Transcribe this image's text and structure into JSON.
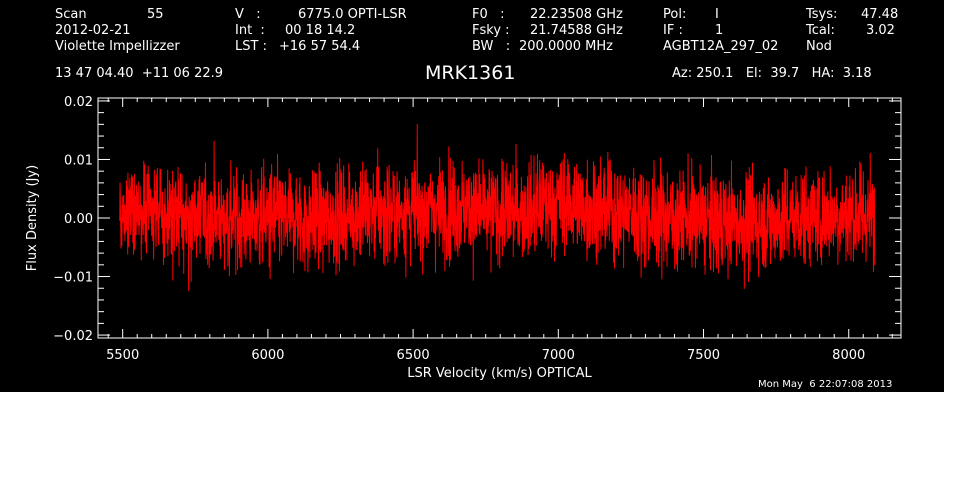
{
  "header": {
    "row1": {
      "scan_label": "Scan",
      "scan_value": "55",
      "v_label": "V   :",
      "v_value": "6775.0 OPTI-LSR",
      "f0_label": "F0   :",
      "f0_value": "22.23508 GHz",
      "pol_label": "Pol:",
      "pol_value": "I",
      "tsys_label": "Tsys:",
      "tsys_value": "47.48"
    },
    "row2": {
      "date": "2012-02-21",
      "int_label": "Int  :",
      "int_value": "00 18 14.2",
      "fsky_label": "Fsky :",
      "fsky_value": "21.74588 GHz",
      "if_label": "IF :",
      "if_value": "1",
      "tcal_label": "Tcal:",
      "tcal_value": "3.02"
    },
    "row3": {
      "observer": "Violette Impellizzer",
      "lst_label": "LST : ",
      "lst_value": "+16 57 54.4",
      "bw_label": "BW   :",
      "bw_value": "200.0000 MHz",
      "project": "AGBT12A_297_02",
      "mode": "Nod"
    },
    "coords": "13 47 04.40  +11 06 22.9",
    "source": "MRK1361",
    "az_el_ha": "Az: 250.1   El:  39.7   HA:  3.18"
  },
  "timestamp": "Mon May  6 22:07:08 2013",
  "colors": {
    "background": "#000000",
    "axes": "#ffffff",
    "trace": "#ff0000"
  },
  "chart_data": {
    "type": "line",
    "xlabel": "LSR Velocity (km/s) OPTICAL",
    "ylabel": "Flux Density (Jy)",
    "xlim": [
      5415,
      8180
    ],
    "ylim": [
      -0.0205,
      0.0205
    ],
    "xticks": [
      5500,
      6000,
      6500,
      7000,
      7500,
      8000
    ],
    "xtick_labels": [
      "5500",
      "6000",
      "6500",
      "7000",
      "7500",
      "8000"
    ],
    "yticks": [
      -0.02,
      -0.01,
      0.0,
      0.01,
      0.02
    ],
    "ytick_labels": [
      "−0.02",
      "−0.01",
      "0.00",
      "0.01",
      "0.02"
    ],
    "series": [
      {
        "velocity_range": [
          5490,
          8090
        ],
        "baseline": [
          [
            5490,
            0.0005
          ],
          [
            5600,
            0.0008
          ],
          [
            5750,
            0.0003
          ],
          [
            5900,
            -0.0002
          ],
          [
            6050,
            0.0
          ],
          [
            6150,
            -0.0005
          ],
          [
            6300,
            0.0008
          ],
          [
            6500,
            0.0012
          ],
          [
            6650,
            0.0018
          ],
          [
            6750,
            0.0008
          ],
          [
            6900,
            0.0012
          ],
          [
            7000,
            0.0028
          ],
          [
            7100,
            0.0018
          ],
          [
            7250,
            0.0008
          ],
          [
            7400,
            0.0
          ],
          [
            7550,
            -0.0006
          ],
          [
            7650,
            -0.0008
          ],
          [
            7800,
            0.0
          ],
          [
            7950,
            0.0006
          ],
          [
            8090,
            0.0003
          ]
        ],
        "rms": 0.0042
      }
    ]
  }
}
